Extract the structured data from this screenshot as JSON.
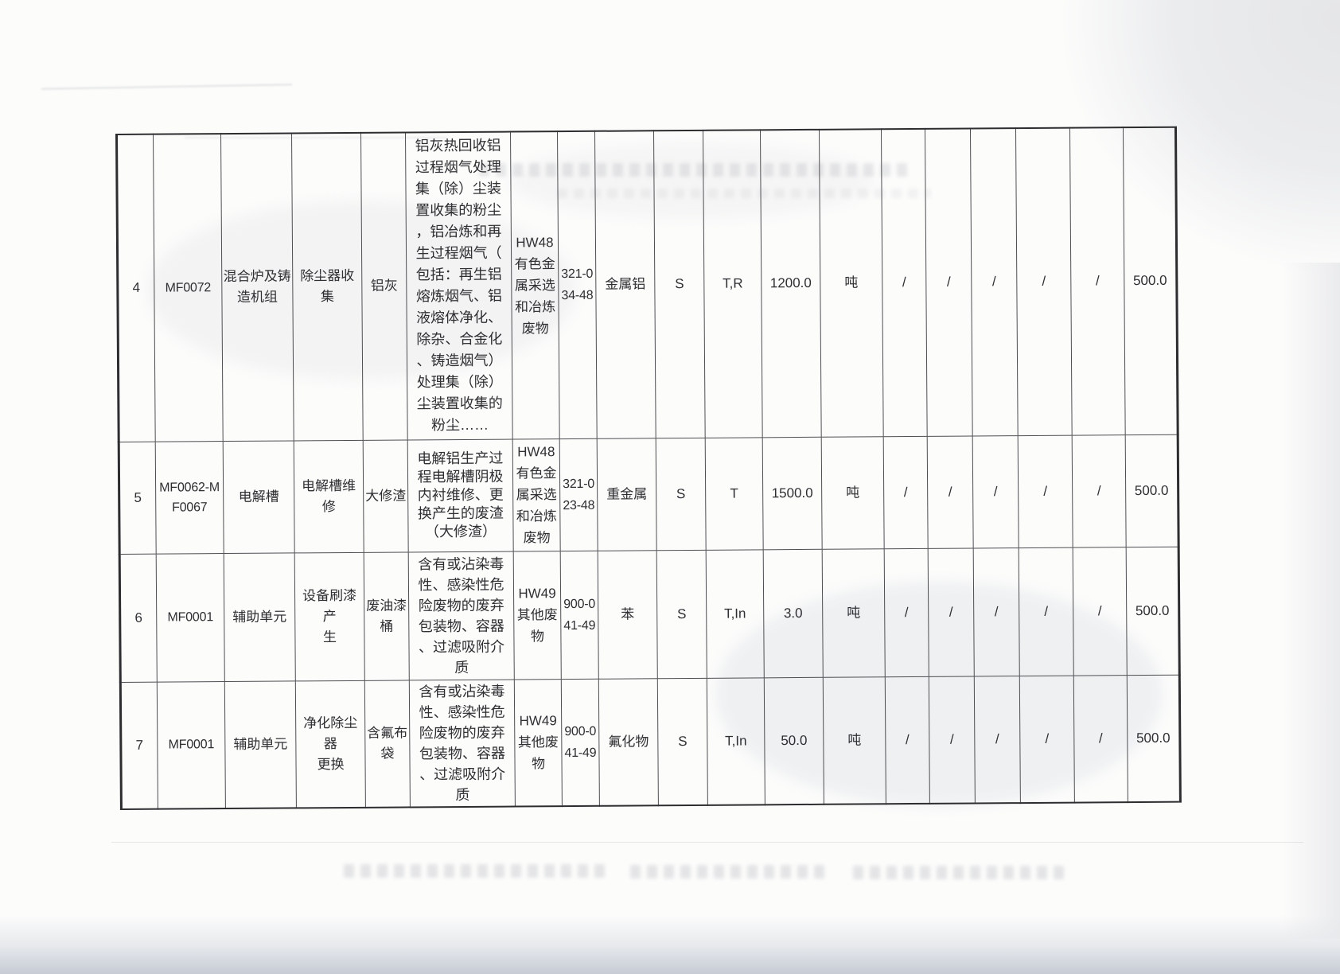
{
  "table": {
    "rows": [
      {
        "seq": "4",
        "code": "MF0072",
        "facility": "混合炉及铸\n造机组",
        "process": "除尘器收集",
        "waste_name": "铝灰",
        "description": "铝灰热回收铝\n过程烟气处理\n集（除）尘装\n置收集的粉尘\n，铝冶炼和再\n生过程烟气（\n包括：再生铝\n熔炼烟气、铝\n液熔体净化、\n除杂、合金化\n、铸造烟气）\n处理集（除）\n尘装置收集的\n粉尘……",
        "hw_category": "HW48\n有色金\n属采选\n和冶炼\n废物",
        "waste_code": "321-0\n34-48",
        "main_component": "金属铝",
        "physical_state": "S",
        "hazard_traits": "T,R",
        "quantity": "1200.0",
        "unit": "吨",
        "d1": "/",
        "d2": "/",
        "d3": "/",
        "d4": "/",
        "d5": "/",
        "quota": "500.0"
      },
      {
        "seq": "5",
        "code": "MF0062-M\nF0067",
        "facility": "电解槽",
        "process": "电解槽维修",
        "waste_name": "大修渣",
        "description": "电解铝生产过\n程电解槽阴极\n内衬维修、更\n换产生的废渣\n（大修渣）",
        "hw_category": "HW48\n有色金\n属采选\n和冶炼\n废物",
        "waste_code": "321-0\n23-48",
        "main_component": "重金属",
        "physical_state": "S",
        "hazard_traits": "T",
        "quantity": "1500.0",
        "unit": "吨",
        "d1": "/",
        "d2": "/",
        "d3": "/",
        "d4": "/",
        "d5": "/",
        "quota": "500.0"
      },
      {
        "seq": "6",
        "code": "MF0001",
        "facility": "辅助单元",
        "process": "设备刷漆产\n生",
        "waste_name": "废油漆\n桶",
        "description": "含有或沾染毒\n性、感染性危\n险废物的废弃\n包装物、容器\n、过滤吸附介\n质",
        "hw_category": "HW49\n其他废\n物",
        "waste_code": "900-0\n41-49",
        "main_component": "苯",
        "physical_state": "S",
        "hazard_traits": "T,In",
        "quantity": "3.0",
        "unit": "吨",
        "d1": "/",
        "d2": "/",
        "d3": "/",
        "d4": "/",
        "d5": "/",
        "quota": "500.0"
      },
      {
        "seq": "7",
        "code": "MF0001",
        "facility": "辅助单元",
        "process": "净化除尘器\n更换",
        "waste_name": "含氟布\n袋",
        "description": "含有或沾染毒\n性、感染性危\n险废物的废弃\n包装物、容器\n、过滤吸附介\n质",
        "hw_category": "HW49\n其他废\n物",
        "waste_code": "900-0\n41-49",
        "main_component": "氟化物",
        "physical_state": "S",
        "hazard_traits": "T,In",
        "quantity": "50.0",
        "unit": "吨",
        "d1": "/",
        "d2": "/",
        "d3": "/",
        "d4": "/",
        "d5": "/",
        "quota": "500.0"
      }
    ]
  }
}
